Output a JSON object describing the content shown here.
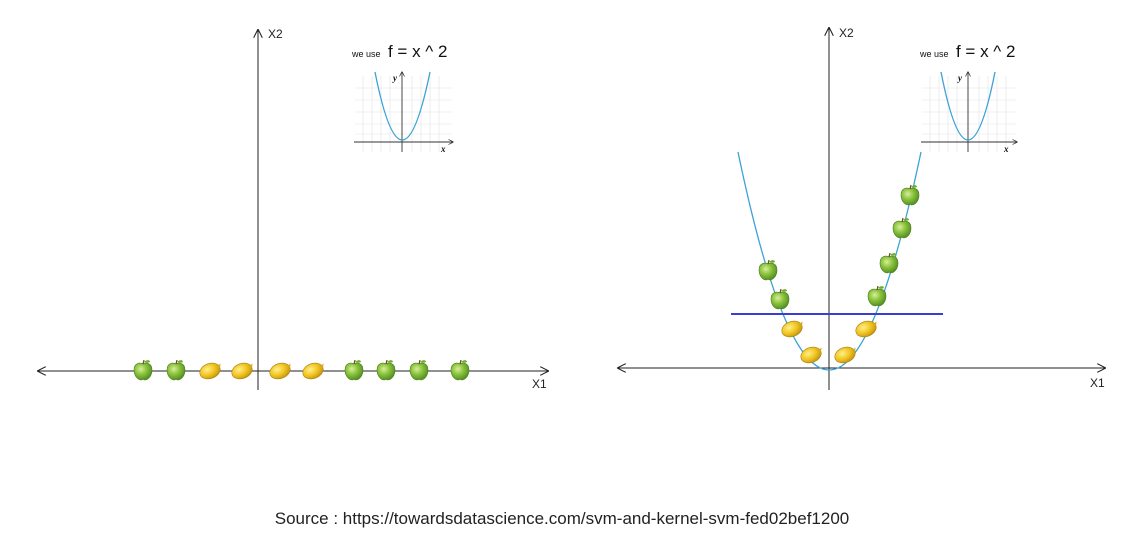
{
  "panels": [
    {
      "x_axis_label": "X1",
      "y_axis_label": "X2",
      "function_prefix": "we use",
      "function_label": "f = x ^ 2",
      "inset": {
        "x_label": "x",
        "y_label": "y"
      },
      "items": [
        "apple",
        "apple",
        "lemon",
        "lemon",
        "lemon",
        "lemon",
        "apple",
        "apple",
        "apple",
        "apple"
      ]
    },
    {
      "x_axis_label": "X1",
      "y_axis_label": "X2",
      "function_prefix": "we use",
      "function_label": "f = x ^ 2",
      "inset": {
        "x_label": "x",
        "y_label": "y"
      },
      "items": [
        "apple",
        "apple",
        "lemon",
        "lemon",
        "lemon",
        "lemon",
        "apple",
        "apple",
        "apple",
        "apple"
      ]
    }
  ],
  "colors": {
    "apple": "#7fb83a",
    "lemon": "#e8b81a",
    "parabola": "#3aa3d6",
    "separator": "#3b3fd1",
    "axis": "#222222"
  },
  "caption": "Source : https://towardsdatascience.com/svm-and-kernel-svm-fed02bef1200"
}
